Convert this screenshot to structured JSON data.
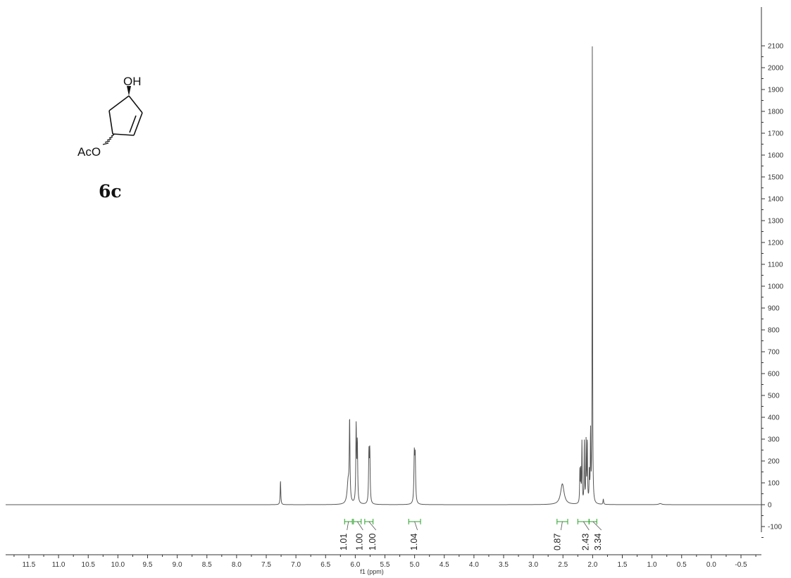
{
  "chart_data": {
    "type": "line",
    "title": "",
    "xlabel": "f1 (ppm)",
    "ylabel": "",
    "x_reversed": true,
    "xlim": [
      12.0,
      -1.0
    ],
    "ylim": [
      -160,
      2110
    ],
    "x_ticks": [
      "11.5",
      "11.0",
      "10.5",
      "10.0",
      "9.5",
      "9.0",
      "8.5",
      "8.0",
      "7.5",
      "7.0",
      "6.5",
      "6.0",
      "5.5",
      "5.0",
      "4.5",
      "4.0",
      "3.5",
      "3.0",
      "2.5",
      "2.0",
      "1.5",
      "1.0",
      "0.5",
      "0.0",
      "-0.5"
    ],
    "y_ticks": [
      "2100",
      "2000",
      "1900",
      "1800",
      "1700",
      "1600",
      "1500",
      "1400",
      "1300",
      "1200",
      "1100",
      "1000",
      "900",
      "800",
      "700",
      "600",
      "500",
      "400",
      "300",
      "200",
      "100",
      "0",
      "-100"
    ],
    "peaks": [
      {
        "ppm": 7.26,
        "height": 110,
        "width": 0.006
      },
      {
        "ppm": 6.12,
        "height": 100,
        "width": 0.02
      },
      {
        "ppm": 6.095,
        "height": 365,
        "width": 0.007
      },
      {
        "ppm": 5.985,
        "height": 350,
        "width": 0.007
      },
      {
        "ppm": 5.965,
        "height": 270,
        "width": 0.007
      },
      {
        "ppm": 5.77,
        "height": 225,
        "width": 0.007
      },
      {
        "ppm": 5.755,
        "height": 230,
        "width": 0.007
      },
      {
        "ppm": 5.005,
        "height": 215,
        "width": 0.008
      },
      {
        "ppm": 4.99,
        "height": 205,
        "width": 0.008
      },
      {
        "ppm": 2.51,
        "height": 95,
        "width": 0.035
      },
      {
        "ppm": 2.215,
        "height": 150,
        "width": 0.005
      },
      {
        "ppm": 2.2,
        "height": 140,
        "width": 0.005
      },
      {
        "ppm": 2.18,
        "height": 280,
        "width": 0.005
      },
      {
        "ppm": 2.14,
        "height": 285,
        "width": 0.005
      },
      {
        "ppm": 2.11,
        "height": 280,
        "width": 0.005
      },
      {
        "ppm": 2.09,
        "height": 285,
        "width": 0.005
      },
      {
        "ppm": 2.055,
        "height": 140,
        "width": 0.005
      },
      {
        "ppm": 2.035,
        "height": 320,
        "width": 0.005
      },
      {
        "ppm": 2.005,
        "height": 2110,
        "width": 0.004
      },
      {
        "ppm": 1.82,
        "height": 25,
        "width": 0.006
      },
      {
        "ppm": 0.86,
        "height": 5,
        "width": 0.03
      }
    ],
    "integrals": [
      {
        "from": 6.18,
        "to": 6.05,
        "value": "1.01"
      },
      {
        "from": 6.03,
        "to": 5.9,
        "value": "1.00"
      },
      {
        "from": 5.84,
        "to": 5.7,
        "value": "1.00"
      },
      {
        "from": 5.1,
        "to": 4.9,
        "value": "1.04"
      },
      {
        "from": 2.6,
        "to": 2.42,
        "value": "0.87"
      },
      {
        "from": 2.25,
        "to": 2.06,
        "value": "2.43"
      },
      {
        "from": 2.06,
        "to": 1.93,
        "value": "3.34"
      }
    ]
  },
  "structure": {
    "compound_label": "6c",
    "oh_label": "OH",
    "aco_label": "AcO"
  },
  "colors": {
    "trace": "#555555",
    "integral": "#2ca02c",
    "axis": "#333333"
  }
}
